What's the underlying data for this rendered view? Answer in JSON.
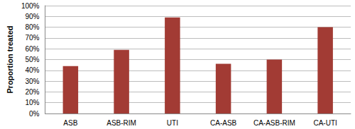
{
  "chart_data": {
    "type": "bar",
    "y_label": "Proportion treated",
    "categories": [
      "ASB",
      "ASB-RIM",
      "UTI",
      "CA-ASB",
      "CA-ASB-RIM",
      "CA-UTI"
    ],
    "values": [
      44,
      59,
      89,
      46,
      50,
      80
    ],
    "color": "#a23b34",
    "ylim": [
      0,
      100
    ],
    "yticks": [
      {
        "value": 0,
        "label": "0%"
      },
      {
        "value": 10,
        "label": "10%"
      },
      {
        "value": 20,
        "label": "20%"
      },
      {
        "value": 30,
        "label": "30%"
      },
      {
        "value": 40,
        "label": "40%"
      },
      {
        "value": 50,
        "label": "50%"
      },
      {
        "value": 60,
        "label": "60%"
      },
      {
        "value": 70,
        "label": "70%"
      },
      {
        "value": 80,
        "label": "80%"
      },
      {
        "value": 90,
        "label": "90%"
      },
      {
        "value": 100,
        "label": "100%"
      }
    ],
    "grid": true
  }
}
